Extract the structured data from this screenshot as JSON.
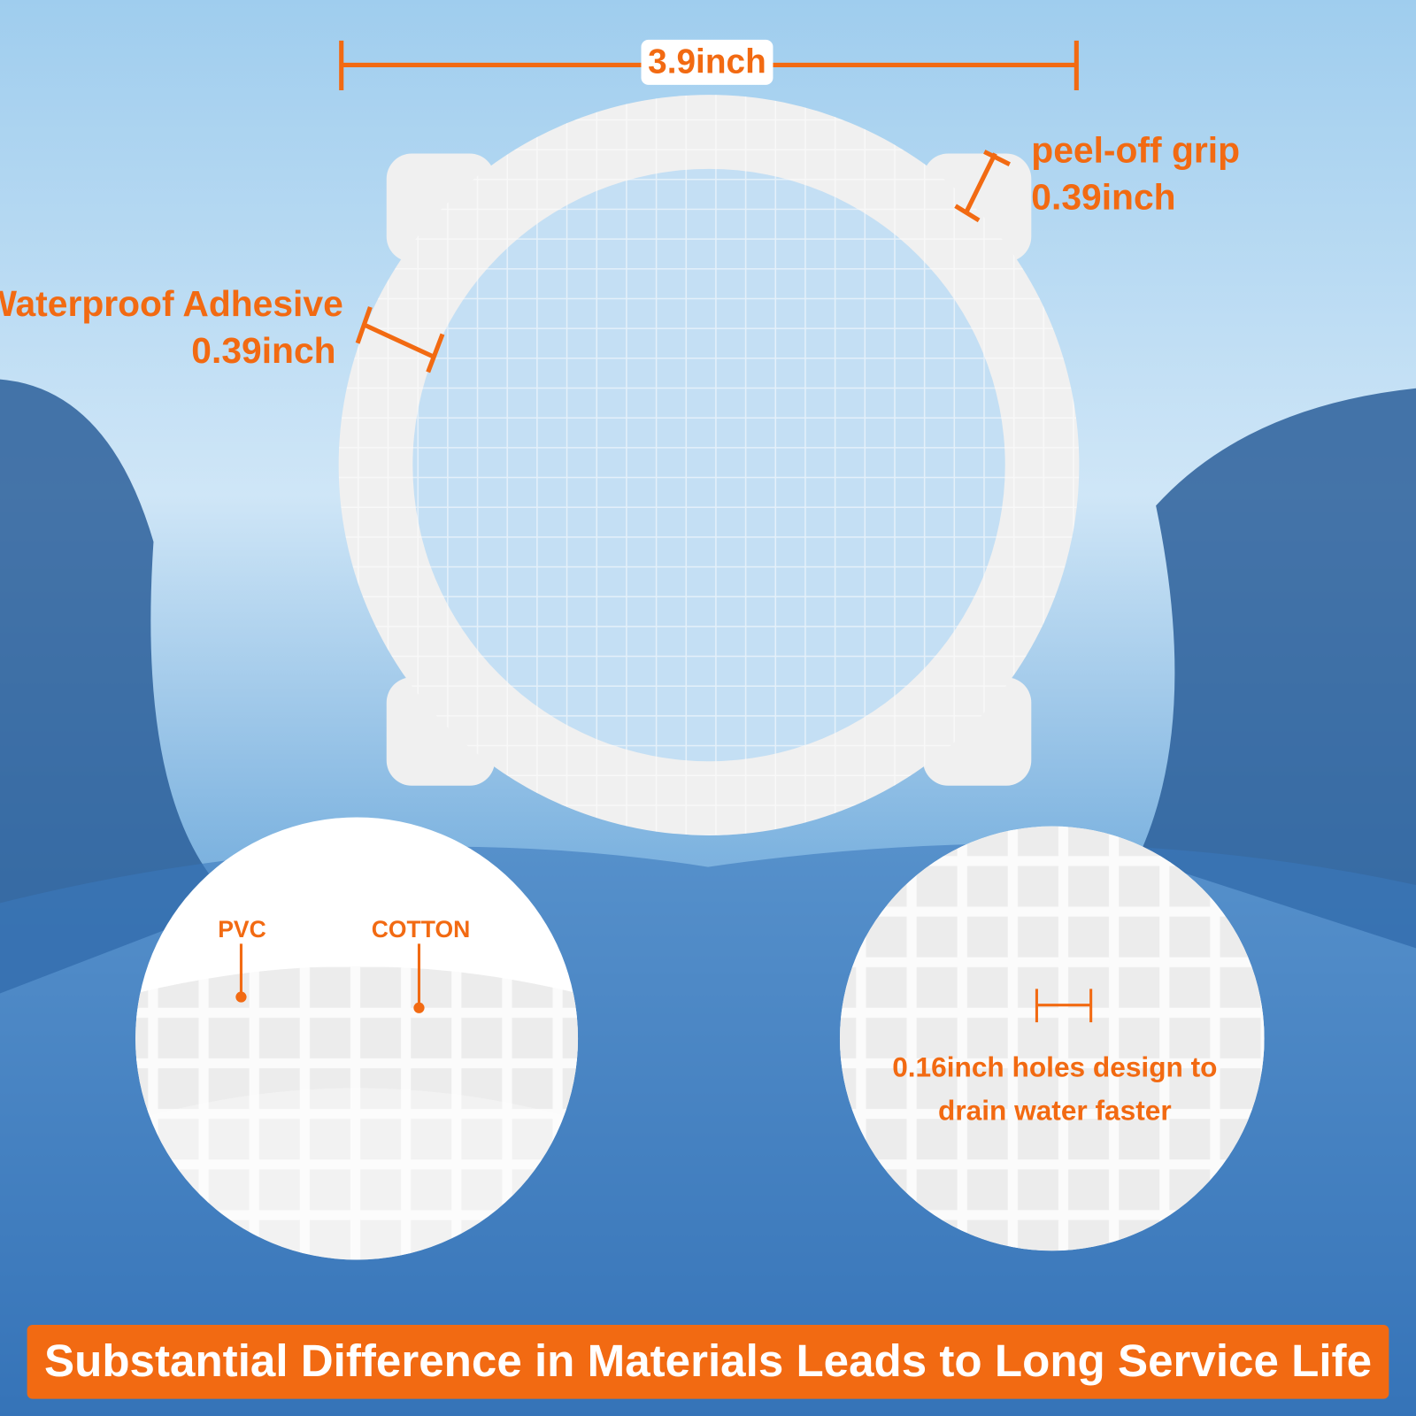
{
  "dimensions": {
    "width": "3.9inch",
    "grip": {
      "label": "peel-off grip",
      "size": "0.39inch"
    },
    "adhesive": {
      "label": "Waterproof Adhesive",
      "size": "0.39inch"
    }
  },
  "detail_left": {
    "labels": [
      "PVC",
      "COTTON"
    ]
  },
  "detail_right": {
    "lines": [
      "0.16inch holes design to",
      "drain water faster"
    ]
  },
  "banner": "Substantial Difference in Materials Leads to Long Service Life"
}
